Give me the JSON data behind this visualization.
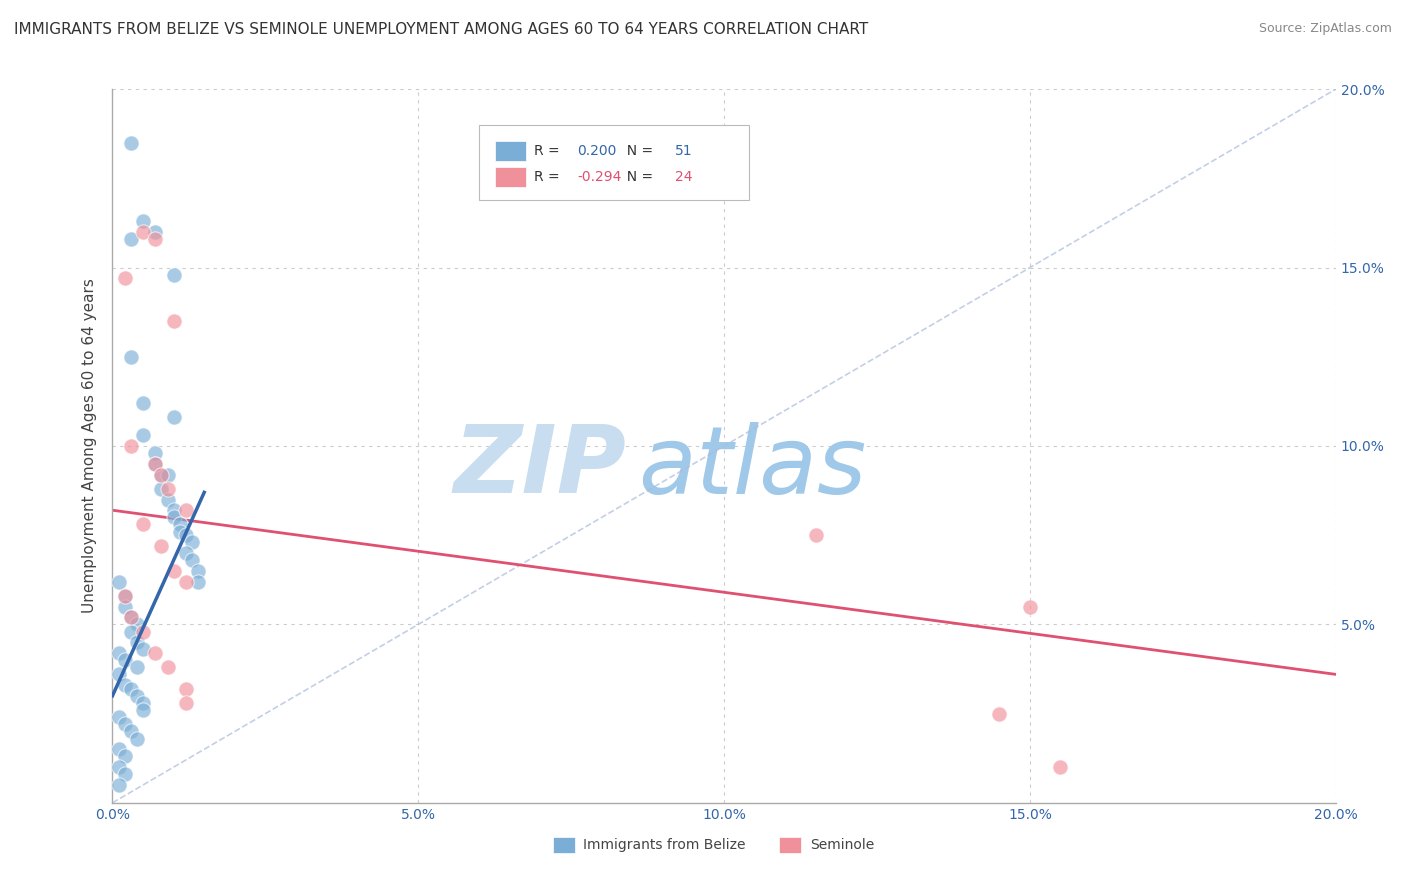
{
  "title": "IMMIGRANTS FROM BELIZE VS SEMINOLE UNEMPLOYMENT AMONG AGES 60 TO 64 YEARS CORRELATION CHART",
  "source": "Source: ZipAtlas.com",
  "ylabel": "Unemployment Among Ages 60 to 64 years",
  "xlim": [
    0.0,
    0.2
  ],
  "ylim": [
    0.0,
    0.2
  ],
  "blue_R": 0.2,
  "blue_N": 51,
  "pink_R": -0.294,
  "pink_N": 24,
  "blue_color": "#7aaed6",
  "pink_color": "#f0909a",
  "blue_scatter": [
    [
      0.003,
      0.185
    ],
    [
      0.005,
      0.163
    ],
    [
      0.007,
      0.16
    ],
    [
      0.003,
      0.158
    ],
    [
      0.01,
      0.148
    ],
    [
      0.003,
      0.125
    ],
    [
      0.005,
      0.112
    ],
    [
      0.01,
      0.108
    ],
    [
      0.005,
      0.103
    ],
    [
      0.007,
      0.098
    ],
    [
      0.007,
      0.095
    ],
    [
      0.008,
      0.092
    ],
    [
      0.009,
      0.092
    ],
    [
      0.008,
      0.088
    ],
    [
      0.009,
      0.085
    ],
    [
      0.01,
      0.082
    ],
    [
      0.01,
      0.08
    ],
    [
      0.011,
      0.078
    ],
    [
      0.011,
      0.076
    ],
    [
      0.012,
      0.075
    ],
    [
      0.013,
      0.073
    ],
    [
      0.012,
      0.07
    ],
    [
      0.013,
      0.068
    ],
    [
      0.014,
      0.065
    ],
    [
      0.014,
      0.062
    ],
    [
      0.001,
      0.062
    ],
    [
      0.002,
      0.058
    ],
    [
      0.002,
      0.055
    ],
    [
      0.003,
      0.052
    ],
    [
      0.004,
      0.05
    ],
    [
      0.003,
      0.048
    ],
    [
      0.004,
      0.045
    ],
    [
      0.005,
      0.043
    ],
    [
      0.001,
      0.042
    ],
    [
      0.002,
      0.04
    ],
    [
      0.004,
      0.038
    ],
    [
      0.001,
      0.036
    ],
    [
      0.002,
      0.033
    ],
    [
      0.003,
      0.032
    ],
    [
      0.004,
      0.03
    ],
    [
      0.005,
      0.028
    ],
    [
      0.005,
      0.026
    ],
    [
      0.001,
      0.024
    ],
    [
      0.002,
      0.022
    ],
    [
      0.003,
      0.02
    ],
    [
      0.004,
      0.018
    ],
    [
      0.001,
      0.015
    ],
    [
      0.002,
      0.013
    ],
    [
      0.001,
      0.01
    ],
    [
      0.002,
      0.008
    ],
    [
      0.001,
      0.005
    ]
  ],
  "pink_scatter": [
    [
      0.005,
      0.16
    ],
    [
      0.007,
      0.158
    ],
    [
      0.002,
      0.147
    ],
    [
      0.01,
      0.135
    ],
    [
      0.003,
      0.1
    ],
    [
      0.007,
      0.095
    ],
    [
      0.008,
      0.092
    ],
    [
      0.009,
      0.088
    ],
    [
      0.012,
      0.082
    ],
    [
      0.005,
      0.078
    ],
    [
      0.008,
      0.072
    ],
    [
      0.01,
      0.065
    ],
    [
      0.012,
      0.062
    ],
    [
      0.002,
      0.058
    ],
    [
      0.003,
      0.052
    ],
    [
      0.005,
      0.048
    ],
    [
      0.007,
      0.042
    ],
    [
      0.009,
      0.038
    ],
    [
      0.012,
      0.032
    ],
    [
      0.012,
      0.028
    ],
    [
      0.115,
      0.075
    ],
    [
      0.15,
      0.055
    ],
    [
      0.145,
      0.025
    ],
    [
      0.155,
      0.01
    ]
  ],
  "watermark_zip": "ZIP",
  "watermark_atlas": "atlas",
  "watermark_color_zip": "#c8ddf0",
  "watermark_color_atlas": "#a0c8e8",
  "background_color": "#FFFFFF",
  "grid_color": "#CCCCCC",
  "blue_line_intercept": 0.03,
  "blue_line_slope": 3.8,
  "blue_dashed_intercept": 0.0,
  "blue_dashed_slope": 1.0,
  "pink_line_intercept": 0.082,
  "pink_line_slope": -0.23
}
